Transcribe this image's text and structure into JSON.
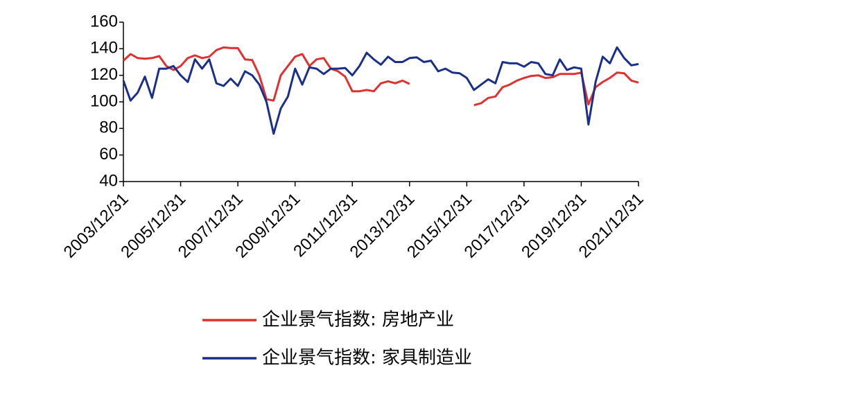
{
  "chart_data": {
    "type": "line",
    "categories": [
      "2003/12/31",
      null,
      null,
      null,
      null,
      null,
      null,
      null,
      "2005/12/31",
      null,
      null,
      null,
      null,
      null,
      null,
      null,
      "2007/12/31",
      null,
      null,
      null,
      null,
      null,
      null,
      null,
      "2009/12/31",
      null,
      null,
      null,
      null,
      null,
      null,
      null,
      "2011/12/31",
      null,
      null,
      null,
      null,
      null,
      null,
      null,
      "2013/12/31",
      null,
      null,
      null,
      null,
      null,
      null,
      null,
      "2015/12/31",
      null,
      null,
      null,
      null,
      null,
      null,
      null,
      "2017/12/31",
      null,
      null,
      null,
      null,
      null,
      null,
      null,
      "2019/12/31",
      null,
      null,
      null,
      null,
      null,
      null,
      null,
      "2021/12/31"
    ],
    "series": [
      {
        "name": "企业景气指数: 房地产业",
        "color": "#e03030",
        "values": [
          131,
          136,
          133,
          132.5,
          133,
          134.5,
          127,
          124,
          127,
          133,
          135,
          133,
          134,
          139,
          141,
          140.5,
          140.5,
          132,
          131.5,
          120,
          102,
          101,
          120,
          127,
          134,
          136,
          127,
          132,
          133,
          125,
          123,
          119,
          108,
          108,
          109,
          108,
          114,
          115.5,
          114,
          116,
          113.5,
          null,
          null,
          null,
          null,
          null,
          null,
          null,
          null,
          97.5,
          99,
          103,
          104,
          111,
          113,
          116,
          118,
          119.5,
          120,
          118,
          118.5,
          121,
          121,
          121,
          122,
          98,
          111,
          115,
          118,
          122,
          121.5,
          116,
          114.5
        ]
      },
      {
        "name": "企业景气指数: 家具制造业",
        "color": "#1a2f8a",
        "values": [
          116,
          101,
          107,
          119,
          103,
          125,
          125,
          127,
          120,
          115,
          132,
          125,
          132,
          114,
          112,
          117.5,
          112,
          123,
          120,
          113,
          100,
          76,
          95,
          104,
          125,
          113,
          126,
          125,
          121,
          125,
          125,
          125.5,
          120,
          127,
          137,
          132,
          128,
          134,
          130,
          130,
          133,
          133.5,
          130,
          131,
          123,
          125,
          122,
          121.5,
          118,
          109,
          113,
          117,
          114,
          130,
          129,
          129,
          126.5,
          130,
          129,
          121,
          120,
          132,
          124,
          126,
          125,
          83,
          115,
          134,
          129,
          141,
          133,
          127.5,
          128.5
        ]
      }
    ],
    "ylim": [
      40,
      160
    ],
    "yticks": [
      40,
      60,
      80,
      100,
      120,
      140,
      160
    ]
  }
}
